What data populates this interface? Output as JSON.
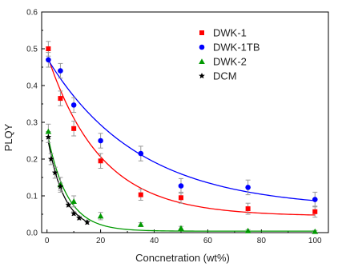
{
  "chart_data": {
    "type": "scatter",
    "xlabel": "Concnetration (wt%)",
    "ylabel": "PLQY",
    "xlim": [
      -2,
      105
    ],
    "ylim": [
      0,
      0.6
    ],
    "x_ticks": [
      0,
      20,
      40,
      60,
      80,
      100
    ],
    "y_ticks": [
      0.0,
      0.1,
      0.2,
      0.3,
      0.4,
      0.5,
      0.6
    ],
    "grid": false,
    "legend_position": "top-right",
    "series": [
      {
        "name": "DWK-1",
        "color": "#ff0000",
        "marker": "square",
        "x": [
          0.5,
          5,
          10,
          20,
          35,
          50,
          75,
          100
        ],
        "y": [
          0.5,
          0.365,
          0.283,
          0.195,
          0.103,
          0.095,
          0.065,
          0.057
        ],
        "err": [
          0.02,
          0.02,
          0.02,
          0.02,
          0.015,
          0.015,
          0.015,
          0.015
        ],
        "fit": {
          "a": 0.44,
          "k": 0.0502,
          "c": 0.045
        }
      },
      {
        "name": "DWK-1TB",
        "color": "#0000ff",
        "marker": "circle",
        "x": [
          0.5,
          5,
          10,
          20,
          35,
          50,
          75,
          100
        ],
        "y": [
          0.47,
          0.44,
          0.347,
          0.25,
          0.215,
          0.127,
          0.123,
          0.09
        ],
        "err": [
          0.02,
          0.02,
          0.02,
          0.02,
          0.02,
          0.02,
          0.02,
          0.02
        ],
        "fit": {
          "a": 0.41,
          "k": 0.0293,
          "c": 0.065
        }
      },
      {
        "name": "DWK-2",
        "color": "#009900",
        "marker": "triangle",
        "x": [
          0.5,
          5,
          10,
          20,
          35,
          50,
          75,
          100
        ],
        "y": [
          0.275,
          0.13,
          0.085,
          0.045,
          0.022,
          0.012,
          0.005,
          0.003
        ],
        "err": [
          0.02,
          0.02,
          0.015,
          0.01,
          0.005,
          0.005,
          0.003,
          0.003
        ],
        "fit": {
          "a": 0.27,
          "k": 0.136,
          "c": 0.004
        }
      },
      {
        "name": "DCM",
        "color": "#000000",
        "marker": "star",
        "x": [
          0.5,
          1.5,
          3,
          5,
          8,
          10,
          12,
          15
        ],
        "y": [
          0.26,
          0.2,
          0.163,
          0.125,
          0.075,
          0.052,
          0.04,
          0.028
        ],
        "err": [
          0.015,
          0.015,
          0.015,
          0.01,
          0.005,
          0.005,
          0.005,
          0.005
        ],
        "fit": {
          "a": 0.26,
          "k": 0.165,
          "c": 0.008,
          "xmax": 15
        }
      }
    ]
  }
}
